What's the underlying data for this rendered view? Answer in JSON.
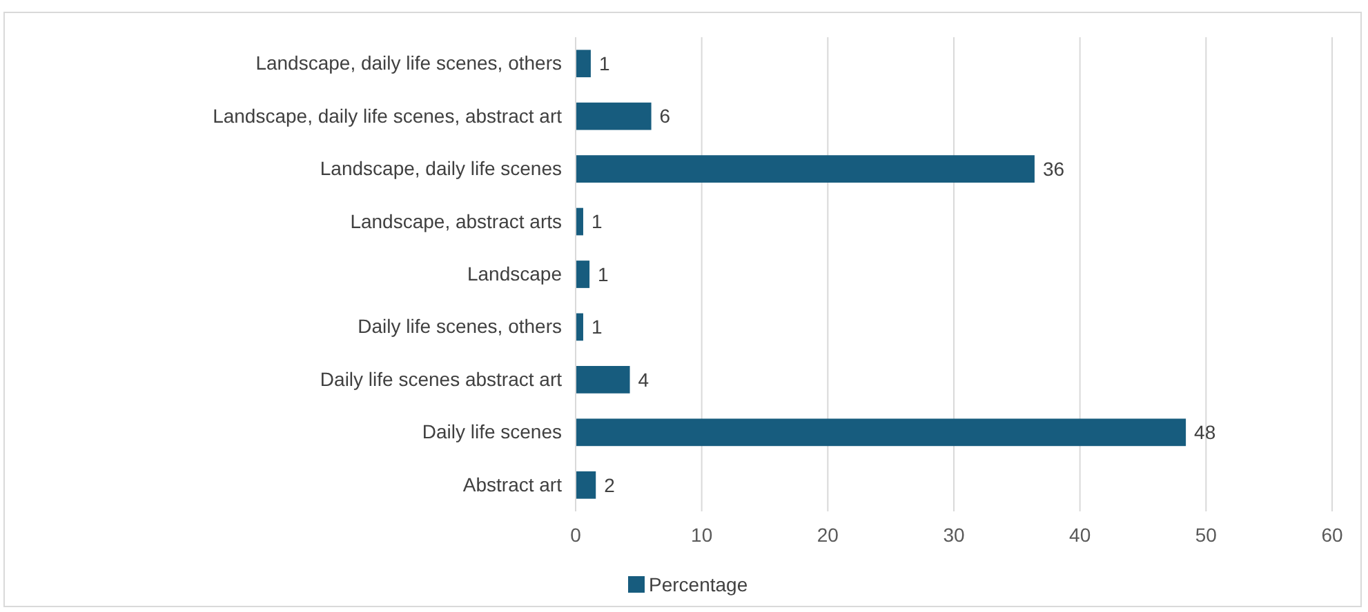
{
  "chart_data": {
    "type": "bar",
    "orientation": "horizontal",
    "categories": [
      "Landscape, daily life scenes, others",
      "Landscape, daily life scenes, abstract art",
      "Landscape, daily life scenes",
      "Landscape, abstract arts",
      "Landscape",
      "Daily life scenes, others",
      "Daily life scenes abstract art",
      "Daily life scenes",
      "Abstract art"
    ],
    "series": [
      {
        "name": "Percentage",
        "color": "#175c7e",
        "values": [
          1.2,
          6,
          36.4,
          0.6,
          1.1,
          0.6,
          4.3,
          48.4,
          1.6
        ],
        "value_labels": [
          "1",
          "6",
          "36",
          "1",
          "1",
          "1",
          "4",
          "48",
          "2"
        ]
      }
    ],
    "xlim": [
      0,
      60
    ],
    "xticks": [
      0,
      10,
      20,
      30,
      40,
      50,
      60
    ],
    "grid": "x",
    "legend": "bottom"
  }
}
